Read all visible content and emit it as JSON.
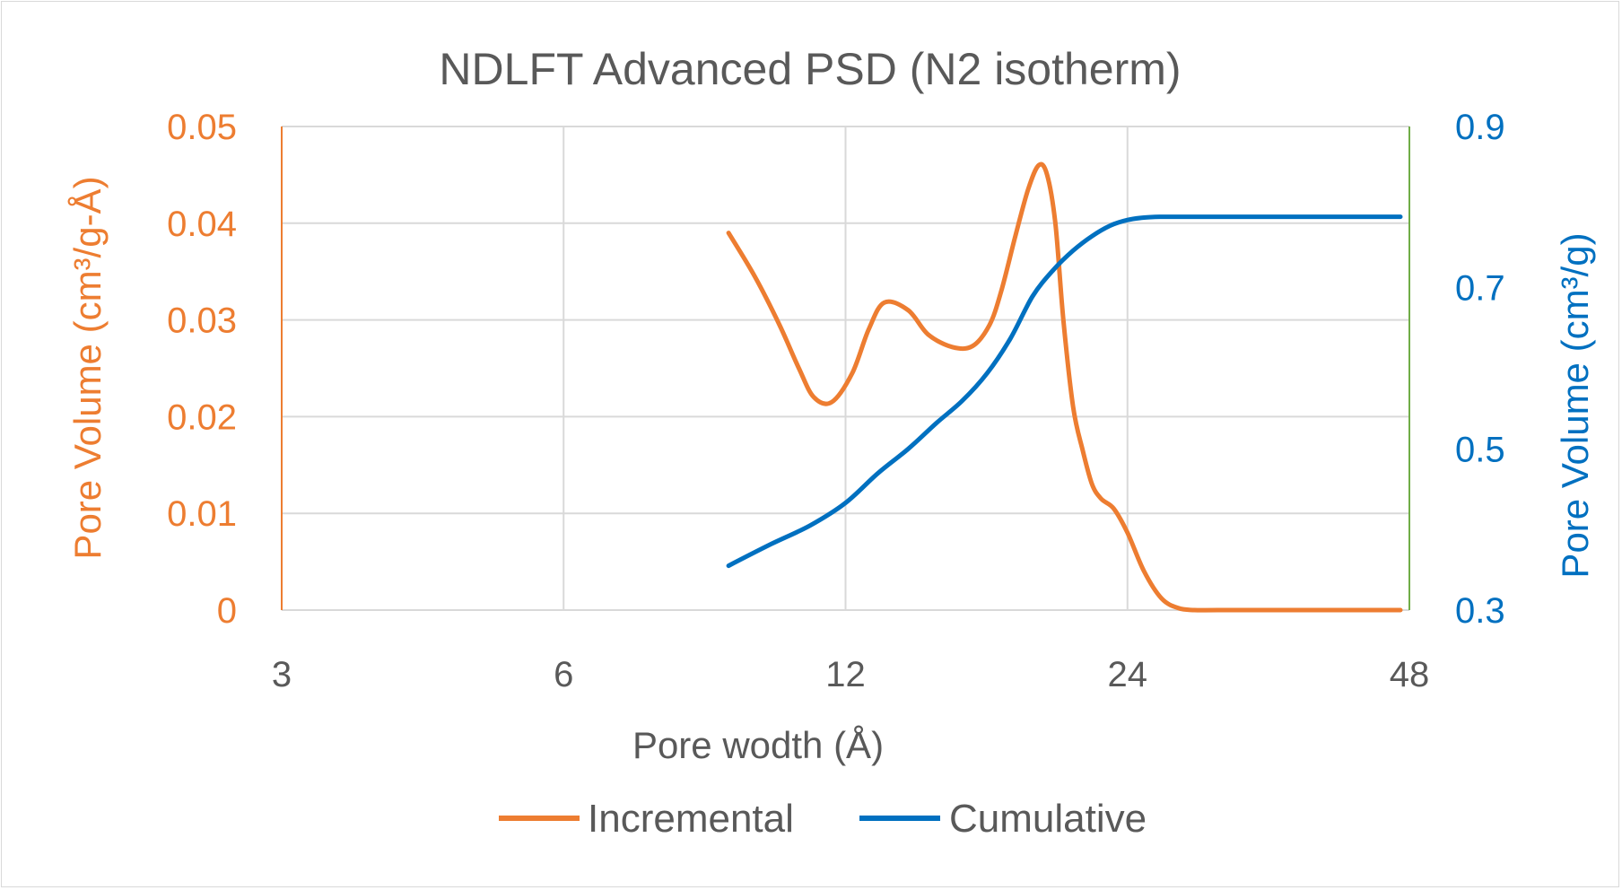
{
  "colors": {
    "incremental": "#ED7D31",
    "cumulative": "#0070C0",
    "grid": "#D9D9D9",
    "text": "#595959",
    "secondary_axis_line": "#70AD47"
  },
  "chart_data": {
    "type": "line",
    "title": "NDLFT Advanced PSD (N2 isotherm)",
    "xlabel": "Pore wodth (Å)",
    "x_scale": "log2",
    "xlim": [
      3,
      48
    ],
    "x_ticks": [
      "3",
      "6",
      "12",
      "24",
      "48"
    ],
    "ylabel_left": "Pore Volume (cm³/g-Å)",
    "ylim_left": [
      0,
      0.05
    ],
    "y_ticks_left": [
      "0",
      "0.01",
      "0.02",
      "0.03",
      "0.04",
      "0.05"
    ],
    "ylabel_right": "Pore Volume (cm³/g)",
    "ylim_right": [
      0.3,
      0.9
    ],
    "y_ticks_right": [
      "0.3",
      "0.5",
      "0.7",
      "0.9"
    ],
    "grid": true,
    "legend": "bottom",
    "series": [
      {
        "name": "Incremental",
        "axis": "left",
        "x": [
          9.0,
          9.6,
          10.2,
          10.7,
          11.1,
          11.6,
          12.2,
          12.7,
          13.2,
          14.0,
          14.7,
          15.6,
          16.4,
          17.1,
          17.6,
          18.2,
          18.8,
          19.3,
          19.7,
          20.1,
          20.5,
          21.0,
          21.5,
          22.0,
          22.5,
          23.2,
          24.0,
          25.0,
          26.1,
          27.2,
          28.3,
          30.0,
          35.0,
          40.0,
          46.0,
          49.0
        ],
        "y": [
          0.039,
          0.0345,
          0.0295,
          0.025,
          0.022,
          0.0215,
          0.0245,
          0.029,
          0.0318,
          0.031,
          0.0285,
          0.0272,
          0.0273,
          0.0295,
          0.033,
          0.0385,
          0.0435,
          0.046,
          0.045,
          0.04,
          0.03,
          0.021,
          0.0165,
          0.013,
          0.0115,
          0.0105,
          0.008,
          0.004,
          0.0012,
          0.0002,
          0.0,
          0.0,
          0.0,
          0.0,
          0.0,
          0.0
        ]
      },
      {
        "name": "Cumulative",
        "axis": "right",
        "x": [
          9.0,
          10.0,
          11.0,
          12.0,
          13.0,
          14.0,
          15.0,
          16.0,
          17.0,
          18.0,
          19.0,
          20.0,
          21.0,
          22.0,
          23.0,
          24.0,
          25.0,
          26.0,
          28.0,
          32.0,
          40.0,
          49.0
        ],
        "y": [
          0.355,
          0.382,
          0.405,
          0.433,
          0.47,
          0.5,
          0.532,
          0.56,
          0.594,
          0.637,
          0.689,
          0.722,
          0.746,
          0.764,
          0.777,
          0.784,
          0.787,
          0.788,
          0.788,
          0.788,
          0.788,
          0.788
        ]
      }
    ]
  }
}
